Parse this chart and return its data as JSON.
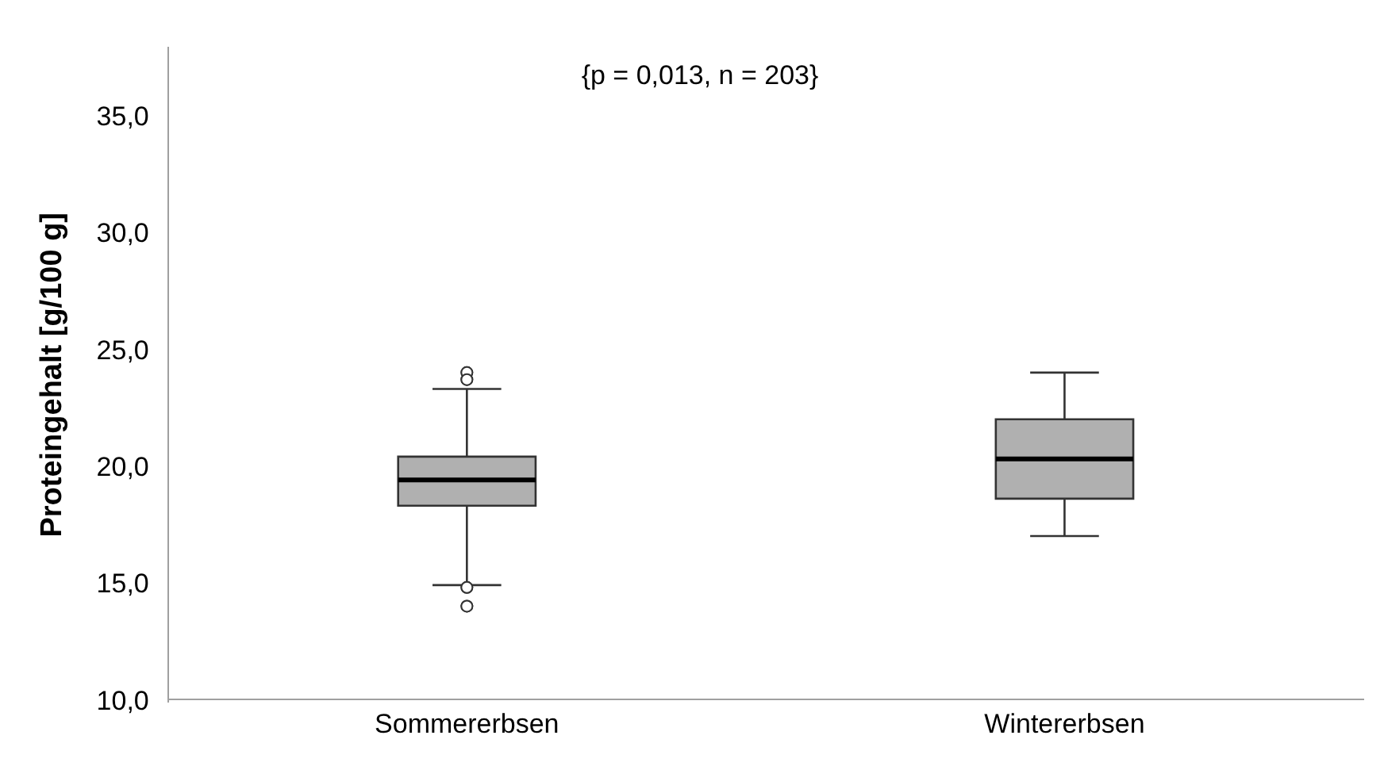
{
  "chart_data": {
    "type": "box",
    "title": "{p = 0,013, n = 203}",
    "ylabel": "Proteingehalt [g/100 g]",
    "categories": [
      "Sommererbsen",
      "Wintererbsen"
    ],
    "color": "#b0b0b0",
    "boxes": [
      {
        "low": 15.0,
        "q1": 18.4,
        "median": 19.5,
        "q3": 20.5,
        "high": 23.4,
        "outliers": [
          24.1,
          23.8,
          14.9,
          14.1
        ]
      },
      {
        "low": 17.1,
        "q1": 18.7,
        "median": 20.4,
        "q3": 22.1,
        "high": 24.1
      }
    ],
    "ylim": [
      10,
      38
    ],
    "yticks": [
      {
        "value": 10,
        "label": "10,0"
      },
      {
        "value": 15,
        "label": "15,0"
      },
      {
        "value": 20,
        "label": "20,0"
      },
      {
        "value": 25,
        "label": "25,0"
      },
      {
        "value": 30,
        "label": "30,0"
      },
      {
        "value": 35,
        "label": "35,0"
      }
    ],
    "grid": false,
    "legend": false
  }
}
